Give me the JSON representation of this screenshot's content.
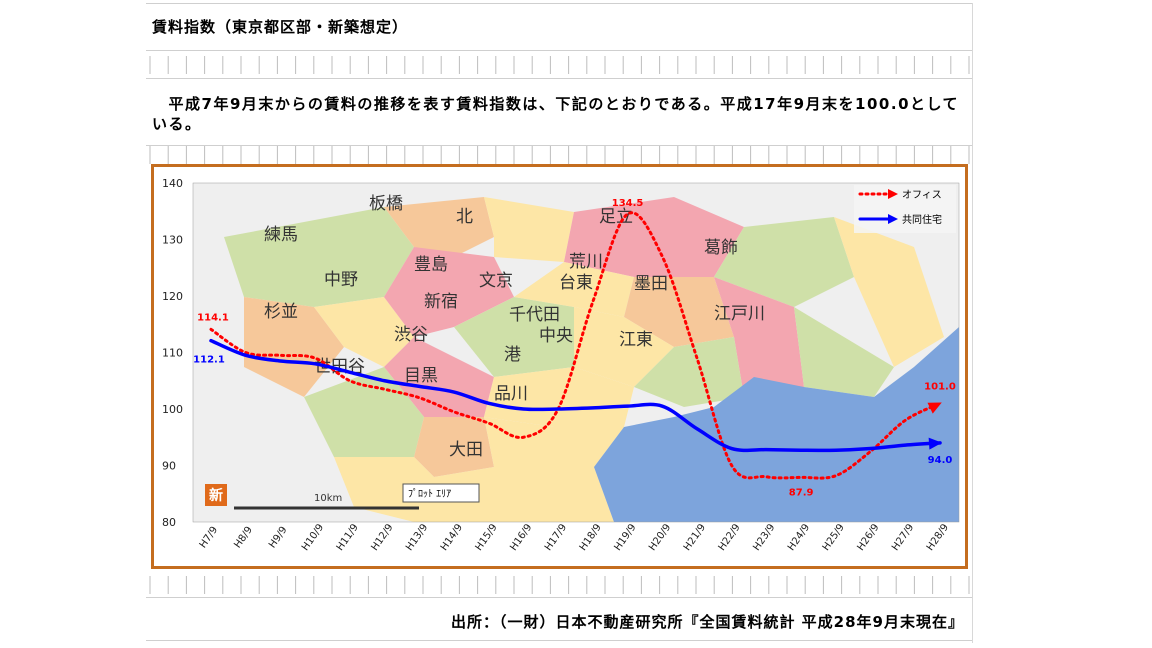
{
  "page": {
    "title": "賃料指数（東京都区部・新築想定）",
    "paragraph_indent": "　",
    "paragraph": "平成7年9月末からの賃料の推移を表す賃料指数は、下記のとおりである。平成17年9月末を100.0としている。",
    "source": "出所：（一財）日本不動産研究所『全国賃料統計 平成28年9月末現在』"
  },
  "map": {
    "wards": [
      "板橋",
      "北",
      "足立",
      "練馬",
      "豊島",
      "荒川",
      "葛飾",
      "中野",
      "文京",
      "台東",
      "墨田",
      "杉並",
      "新宿",
      "千代田",
      "江戸川",
      "渋谷",
      "中央",
      "江東",
      "港",
      "世田谷",
      "目黒",
      "品川",
      "大田"
    ],
    "scale_label": "10km",
    "stamp": "新",
    "tooltip": "ﾌﾟﾛｯﾄ ｴﾘｱ"
  },
  "colors": {
    "frame": "#c46d1f",
    "office": "#ff0000",
    "residential": "#0000ff",
    "sea": "#7da4dc"
  },
  "chart_data": {
    "type": "line",
    "categories": [
      "H7/9",
      "H8/9",
      "H9/9",
      "H10/9",
      "H11/9",
      "H12/9",
      "H13/9",
      "H14/9",
      "H15/9",
      "H16/9",
      "H17/9",
      "H18/9",
      "H19/9",
      "H20/9",
      "H21/9",
      "H22/9",
      "H23/9",
      "H24/9",
      "H25/9",
      "H26/9",
      "H27/9",
      "H28/9"
    ],
    "ylim": [
      80,
      140
    ],
    "yticks": [
      80,
      90,
      100,
      110,
      120,
      130,
      140
    ],
    "grid": false,
    "legend": "top-right",
    "series": [
      {
        "name": "オフィス",
        "style": "dotted",
        "color": "#ff0000",
        "values": [
          114.1,
          110.0,
          109.5,
          109.0,
          105.0,
          103.5,
          102.0,
          99.5,
          97.5,
          95.0,
          100.0,
          119.0,
          134.5,
          127.0,
          109.0,
          90.0,
          88.0,
          87.9,
          88.2,
          92.5,
          98.0,
          101.0
        ]
      },
      {
        "name": "共同住宅",
        "style": "solid",
        "color": "#0000ff",
        "values": [
          112.1,
          109.5,
          108.5,
          108.0,
          106.5,
          105.0,
          104.0,
          103.0,
          101.0,
          100.0,
          100.0,
          100.2,
          100.5,
          100.5,
          96.5,
          93.0,
          92.8,
          92.7,
          92.7,
          93.0,
          93.6,
          94.0
        ]
      }
    ],
    "annotations": [
      {
        "series": 0,
        "index": 0,
        "label": "114.1"
      },
      {
        "series": 0,
        "index": 12,
        "label": "134.5"
      },
      {
        "series": 0,
        "index": 17,
        "label": "87.9"
      },
      {
        "series": 0,
        "index": 21,
        "label": "101.0"
      },
      {
        "series": 1,
        "index": 0,
        "label": "112.1"
      },
      {
        "series": 1,
        "index": 21,
        "label": "94.0"
      }
    ]
  }
}
